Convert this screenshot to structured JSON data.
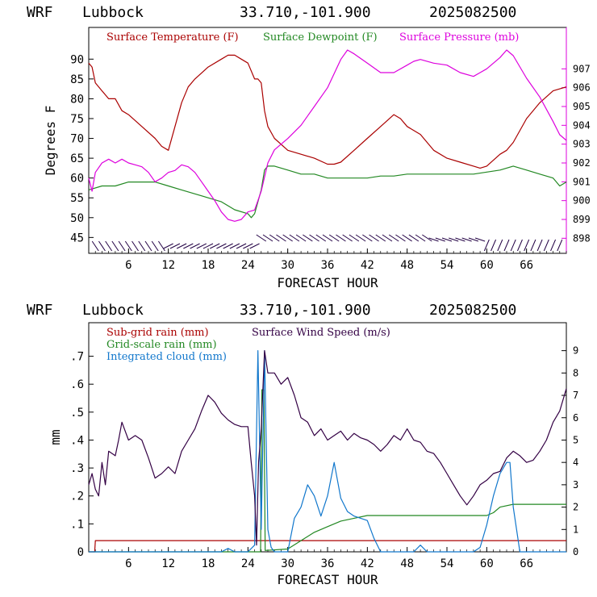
{
  "chart_data": [
    {
      "type": "line",
      "header": {
        "model": "WRF",
        "location": "Lubbock",
        "coords": "33.710,-101.900",
        "run": "2025082500"
      },
      "xlabel": "FORECAST HOUR",
      "ylabel": "Degrees F",
      "xlim": [
        0,
        72
      ],
      "ylim": [
        41,
        98
      ],
      "y2lim": [
        897.2,
        909.2
      ],
      "xticks": [
        "6",
        "12",
        "18",
        "24",
        "30",
        "36",
        "42",
        "48",
        "54",
        "60",
        "66"
      ],
      "yticks": [
        "45",
        "50",
        "55",
        "60",
        "65",
        "70",
        "75",
        "80",
        "85",
        "90"
      ],
      "y2ticks": [
        "898",
        "899",
        "900",
        "901",
        "902",
        "903",
        "904",
        "905",
        "906",
        "907"
      ],
      "colors": {
        "temperature": "#aa0000",
        "dewpoint": "#228822",
        "pressure": "#dd00dd",
        "wind": "#220044"
      },
      "series": [
        {
          "name": "Surface Temperature (F)",
          "axis": "left",
          "x": [
            0,
            0.5,
            1,
            2,
            3,
            4,
            5,
            6,
            8,
            10,
            11,
            12,
            13,
            14,
            15,
            16,
            18,
            20,
            21,
            22,
            23,
            24,
            25,
            25.5,
            26,
            26.5,
            27,
            28,
            30,
            32,
            34,
            36,
            37,
            38,
            40,
            42,
            44,
            46,
            47,
            48,
            50,
            52,
            54,
            56,
            58,
            59,
            60,
            62,
            63,
            64,
            66,
            68,
            70,
            72
          ],
          "y": [
            89,
            88,
            84,
            82,
            80,
            80,
            77,
            76,
            73,
            70,
            68,
            67,
            73,
            79,
            83,
            85,
            88,
            90,
            91,
            91,
            90,
            89,
            85,
            85,
            84,
            77,
            73,
            70,
            67,
            66,
            65,
            63.5,
            63.5,
            64,
            67,
            70,
            73,
            76,
            75,
            73,
            71,
            67,
            65,
            64,
            63,
            62.5,
            63,
            66,
            67,
            69,
            75,
            79,
            82,
            83
          ]
        },
        {
          "name": "Surface Dewpoint (F)",
          "axis": "left",
          "x": [
            0,
            2,
            4,
            6,
            8,
            10,
            12,
            14,
            16,
            18,
            20,
            22,
            24,
            24.5,
            25,
            26,
            26.5,
            27,
            28,
            30,
            32,
            34,
            36,
            38,
            40,
            42,
            44,
            46,
            48,
            50,
            52,
            54,
            56,
            58,
            60,
            62,
            64,
            66,
            68,
            70,
            71,
            72
          ],
          "y": [
            57,
            58,
            58,
            59,
            59,
            59,
            58,
            57,
            56,
            55,
            54,
            52,
            51,
            50,
            51,
            57,
            62,
            63,
            63,
            62,
            61,
            61,
            60,
            60,
            60,
            60,
            60.5,
            60.5,
            61,
            61,
            61,
            61,
            61,
            61,
            61.5,
            62,
            63,
            62,
            61,
            60,
            58,
            59
          ]
        },
        {
          "name": "Surface Pressure (mb)",
          "axis": "right",
          "x": [
            0,
            0.5,
            1,
            2,
            3,
            4,
            5,
            6,
            7,
            8,
            9,
            10,
            11,
            12,
            13,
            14,
            15,
            16,
            17,
            18,
            19,
            20,
            21,
            22,
            23,
            24,
            25,
            26,
            27,
            28,
            30,
            32,
            34,
            36,
            38,
            39,
            40,
            42,
            44,
            46,
            48,
            49,
            50,
            52,
            54,
            56,
            58,
            59,
            60,
            62,
            63,
            64,
            66,
            68,
            70,
            71,
            72
          ],
          "y": [
            901.2,
            900.5,
            901.5,
            902,
            902.2,
            902,
            902.2,
            902,
            901.9,
            901.8,
            901.5,
            901,
            901.2,
            901.5,
            901.6,
            901.9,
            901.8,
            901.5,
            901,
            900.5,
            900,
            899.4,
            899,
            898.9,
            899,
            899.4,
            899.5,
            900.5,
            902,
            902.7,
            903.3,
            904,
            905,
            906,
            907.5,
            908,
            907.8,
            907.3,
            906.8,
            906.8,
            907.2,
            907.4,
            907.5,
            907.3,
            907.2,
            906.8,
            906.6,
            906.8,
            907,
            907.6,
            908,
            907.7,
            906.5,
            905.5,
            904.2,
            903.5,
            903.2
          ]
        }
      ],
      "wind_barbs": "row of wind barbs along the bottom of the plot"
    },
    {
      "type": "line",
      "header": {
        "model": "WRF",
        "location": "Lubbock",
        "coords": "33.710,-101.900",
        "run": "2025082500"
      },
      "xlabel": "FORECAST HOUR",
      "ylabel": "mm",
      "xlim": [
        0,
        72
      ],
      "ylim": [
        0,
        0.82
      ],
      "y2lim": [
        0,
        10.25
      ],
      "xticks": [
        "6",
        "12",
        "18",
        "24",
        "30",
        "36",
        "42",
        "48",
        "54",
        "60",
        "66"
      ],
      "yticks": [
        "0",
        ".1",
        ".2",
        ".3",
        ".4",
        ".5",
        ".6",
        ".7"
      ],
      "y2ticks": [
        "0",
        "1",
        "2",
        "3",
        "4",
        "5",
        "6",
        "7",
        "8",
        "9"
      ],
      "colors": {
        "subgrid": "#aa0000",
        "gridscale": "#228822",
        "cloud": "#1177cc",
        "wind": "#330044"
      },
      "series": [
        {
          "name": "Sub-grid rain (mm)",
          "axis": "left",
          "x": [
            0,
            0.9,
            1,
            72
          ],
          "y": [
            0,
            0,
            0.04,
            0.04
          ]
        },
        {
          "name": "Grid-scale rain (mm)",
          "axis": "left",
          "x": [
            0,
            25.9,
            26.1,
            26.4,
            26.6,
            30,
            32,
            34,
            36,
            38,
            40,
            42,
            44,
            46,
            48,
            50,
            52,
            54,
            56,
            58,
            60,
            61,
            62,
            64,
            66,
            68,
            70,
            72
          ],
          "y": [
            0,
            0,
            0.58,
            0.58,
            0.005,
            0.01,
            0.04,
            0.07,
            0.09,
            0.11,
            0.12,
            0.13,
            0.13,
            0.13,
            0.13,
            0.13,
            0.13,
            0.13,
            0.13,
            0.13,
            0.13,
            0.14,
            0.16,
            0.17,
            0.17,
            0.17,
            0.17,
            0.17
          ]
        },
        {
          "name": "Integrated cloud (mm)",
          "axis": "right",
          "x": [
            0,
            20,
            21,
            22,
            24,
            25,
            25.5,
            26,
            26.5,
            27,
            27.5,
            28,
            29,
            30,
            31,
            32,
            33,
            34,
            35,
            36,
            37,
            38,
            39,
            40,
            41,
            42,
            43,
            44,
            46,
            48,
            49,
            50,
            51,
            52,
            56,
            58,
            59,
            60,
            61,
            62,
            63,
            63.5,
            64,
            65,
            72
          ],
          "y": [
            0,
            0,
            0.15,
            0,
            0,
            0.3,
            9,
            1,
            9,
            1,
            0.2,
            0,
            0,
            0,
            1.5,
            2,
            3,
            2.5,
            1.6,
            2.5,
            4,
            2.4,
            1.8,
            1.6,
            1.5,
            1.4,
            0.6,
            0,
            0,
            0,
            0,
            0.3,
            0,
            0,
            0,
            0,
            0.2,
            1.2,
            2.5,
            3.5,
            4,
            4,
            2,
            0,
            0
          ]
        },
        {
          "name": "Surface Wind Speed (m/s)",
          "axis": "right",
          "x": [
            0,
            0.5,
            1,
            1.5,
            2,
            2.5,
            3,
            4,
            4.5,
            5,
            6,
            7,
            8,
            9,
            10,
            11,
            12,
            13,
            14,
            15,
            16,
            17,
            18,
            19,
            20,
            21,
            22,
            23,
            24,
            24.5,
            25,
            25.3,
            25.6,
            26,
            26.5,
            27,
            28,
            29,
            30,
            31,
            32,
            33,
            34,
            35,
            36,
            37,
            38,
            39,
            40,
            41,
            42,
            43,
            44,
            45,
            46,
            47,
            48,
            49,
            50,
            51,
            52,
            53,
            54,
            55,
            56,
            57,
            58,
            59,
            60,
            61,
            62,
            63,
            64,
            65,
            66,
            67,
            68,
            69,
            70,
            71,
            72
          ],
          "y": [
            3,
            3.5,
            2.8,
            2.5,
            4,
            3,
            4.5,
            4.3,
            5,
            5.8,
            5,
            5.2,
            5,
            4.2,
            3.3,
            3.5,
            3.8,
            3.5,
            4.5,
            5,
            5.5,
            6.3,
            7,
            6.7,
            6.2,
            5.9,
            5.7,
            5.6,
            5.6,
            4,
            2.5,
            0.3,
            4,
            5.5,
            9,
            8,
            8,
            7.5,
            7.8,
            7,
            6,
            5.8,
            5.2,
            5.5,
            5,
            5.2,
            5.4,
            5,
            5.3,
            5.1,
            5,
            4.8,
            4.5,
            4.8,
            5.2,
            5,
            5.5,
            5,
            4.9,
            4.5,
            4.4,
            4,
            3.5,
            3,
            2.5,
            2.1,
            2.5,
            3,
            3.2,
            3.5,
            3.6,
            4.2,
            4.5,
            4.3,
            4,
            4.1,
            4.5,
            5,
            5.8,
            6.3,
            7.3
          ]
        }
      ]
    }
  ]
}
